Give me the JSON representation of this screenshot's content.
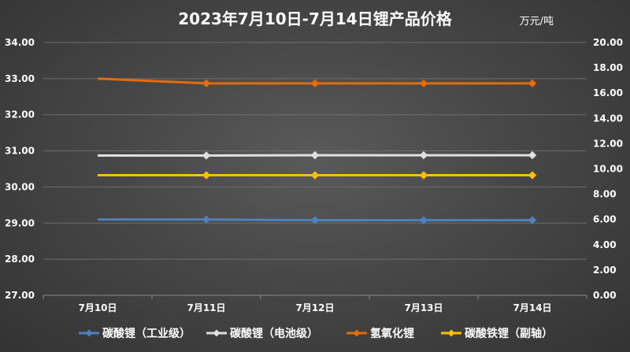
{
  "chart_data": {
    "type": "line",
    "title": "2023年7月10日-7月14日锂产品价格",
    "unit_label": "万元/吨",
    "categories": [
      "7月10日",
      "7月11日",
      "7月12日",
      "7月13日",
      "7月14日"
    ],
    "y_left": {
      "min": 27,
      "max": 34,
      "step": 1,
      "decimals": 2,
      "ticks": [
        "27.00",
        "28.00",
        "29.00",
        "30.00",
        "31.00",
        "32.00",
        "33.00",
        "34.00"
      ]
    },
    "y_right": {
      "min": 0,
      "max": 20,
      "step": 2,
      "decimals": 2,
      "ticks": [
        "0.00",
        "2.00",
        "4.00",
        "6.00",
        "8.00",
        "10.00",
        "12.00",
        "14.00",
        "16.00",
        "18.00",
        "20.00"
      ]
    },
    "series": [
      {
        "name": "碳酸锂（工业级）",
        "color": "#4f81bd",
        "axis": "left",
        "values": [
          29.1,
          29.1,
          29.08,
          29.08,
          29.08
        ]
      },
      {
        "name": "碳酸锂（电池级）",
        "color": "#e0e0e0",
        "axis": "left",
        "values": [
          30.87,
          30.87,
          30.88,
          30.88,
          30.88
        ]
      },
      {
        "name": "氢氧化锂",
        "color": "#e46c0a",
        "axis": "left",
        "values": [
          33.0,
          32.87,
          32.87,
          32.87,
          32.87
        ]
      },
      {
        "name": "碳酸铁锂（副轴）",
        "color": "#ffc000",
        "axis": "right",
        "values": [
          9.5,
          9.5,
          9.5,
          9.5,
          9.5
        ]
      }
    ],
    "grid": true,
    "legend_position": "bottom"
  }
}
